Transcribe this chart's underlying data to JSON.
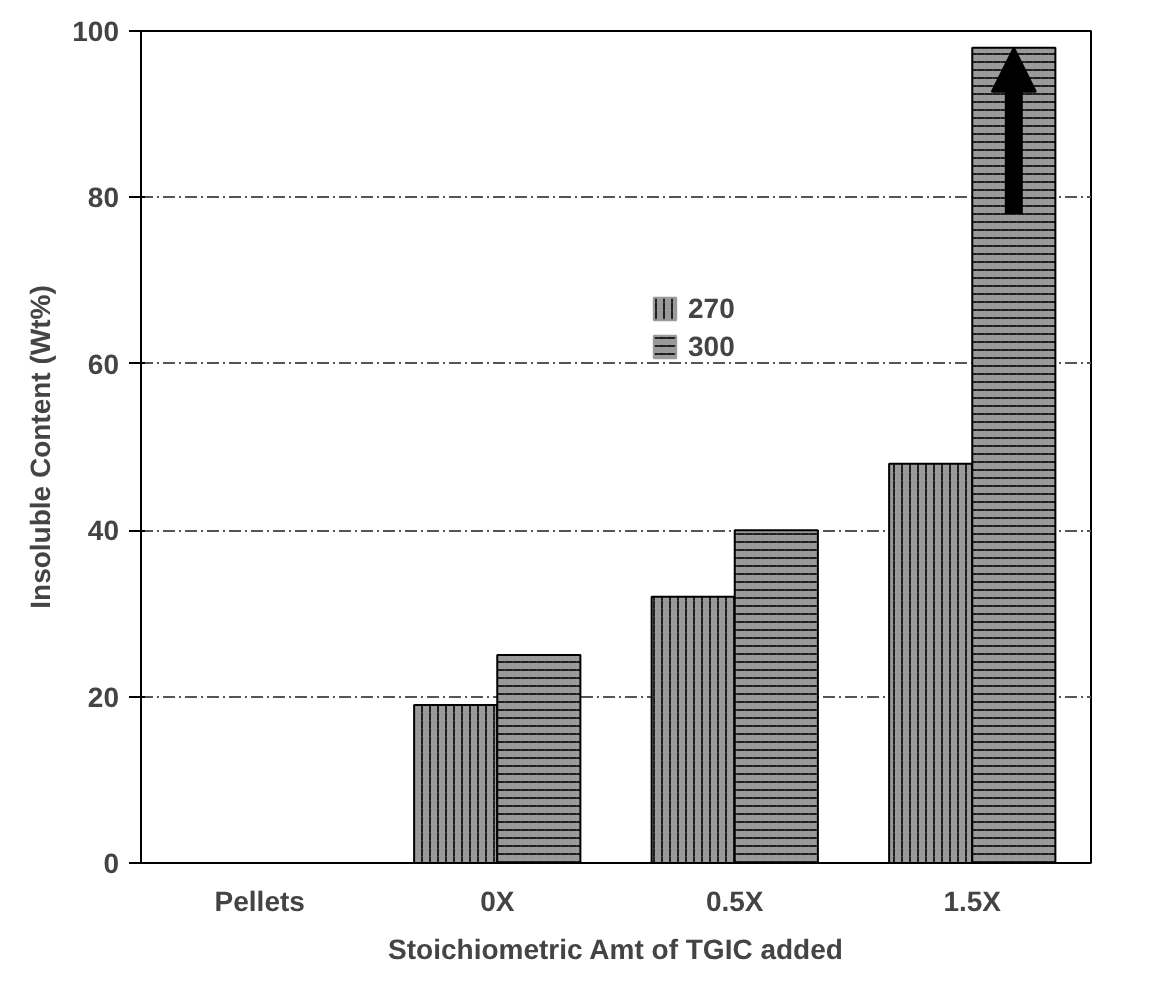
{
  "chart_data": {
    "type": "bar",
    "xlabel": "Stoichiometric Amt of TGIC added",
    "ylabel": "Insoluble Content (Wt%)",
    "categories": [
      "Pellets",
      "0X",
      "0.5X",
      "1.5X"
    ],
    "series": [
      {
        "name": "270",
        "color": "#9a9a9a",
        "values": [
          0,
          19,
          32,
          48
        ]
      },
      {
        "name": "300",
        "color": "#9a9a9a",
        "values": [
          0,
          25,
          40,
          98
        ]
      }
    ],
    "ylim": [
      0,
      100
    ],
    "yticks": [
      0,
      20,
      40,
      60,
      80,
      100
    ],
    "grid": "y",
    "legend": "top right"
  }
}
